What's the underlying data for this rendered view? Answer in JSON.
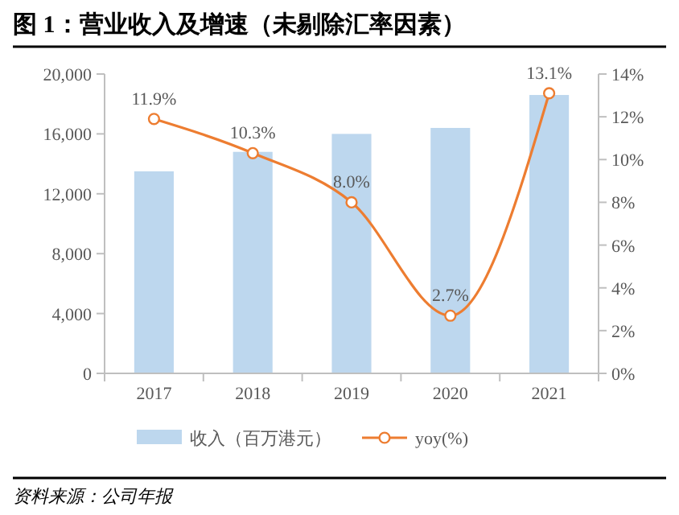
{
  "chart_data": {
    "type": "bar",
    "title": "图 1：营业收入及增速（未剔除汇率因素）",
    "categories": [
      "2017",
      "2018",
      "2019",
      "2020",
      "2021"
    ],
    "series": [
      {
        "name": "收入（百万港元）",
        "color": "#bdd7ee",
        "values": [
          13500,
          14800,
          16000,
          16400,
          18600
        ]
      },
      {
        "name": "yoy(%)",
        "type": "line",
        "axis": "y2",
        "color": "#ed7d31",
        "marker": "circle",
        "values": [
          11.9,
          10.3,
          8.0,
          2.7,
          13.1
        ],
        "value_labels": [
          "11.9%",
          "10.3%",
          "8.0%",
          "2.7%",
          "13.1%"
        ]
      }
    ],
    "ylim": [
      0,
      20000
    ],
    "yticks": [
      {
        "value": 0,
        "label": "0"
      },
      {
        "value": 4000,
        "label": "4,000"
      },
      {
        "value": 8000,
        "label": "8,000"
      },
      {
        "value": 12000,
        "label": "12,000"
      },
      {
        "value": 16000,
        "label": "16,000"
      },
      {
        "value": 20000,
        "label": "20,000"
      }
    ],
    "y2lim": [
      0,
      14
    ],
    "y2ticks": [
      {
        "value": 0,
        "label": "0%"
      },
      {
        "value": 2,
        "label": "2%"
      },
      {
        "value": 4,
        "label": "4%"
      },
      {
        "value": 6,
        "label": "6%"
      },
      {
        "value": 8,
        "label": "8%"
      },
      {
        "value": 10,
        "label": "10%"
      },
      {
        "value": 12,
        "label": "12%"
      },
      {
        "value": 14,
        "label": "14%"
      }
    ],
    "legend": "bottom",
    "grid": false,
    "annotations": [
      "资料来源：公司年报"
    ]
  }
}
